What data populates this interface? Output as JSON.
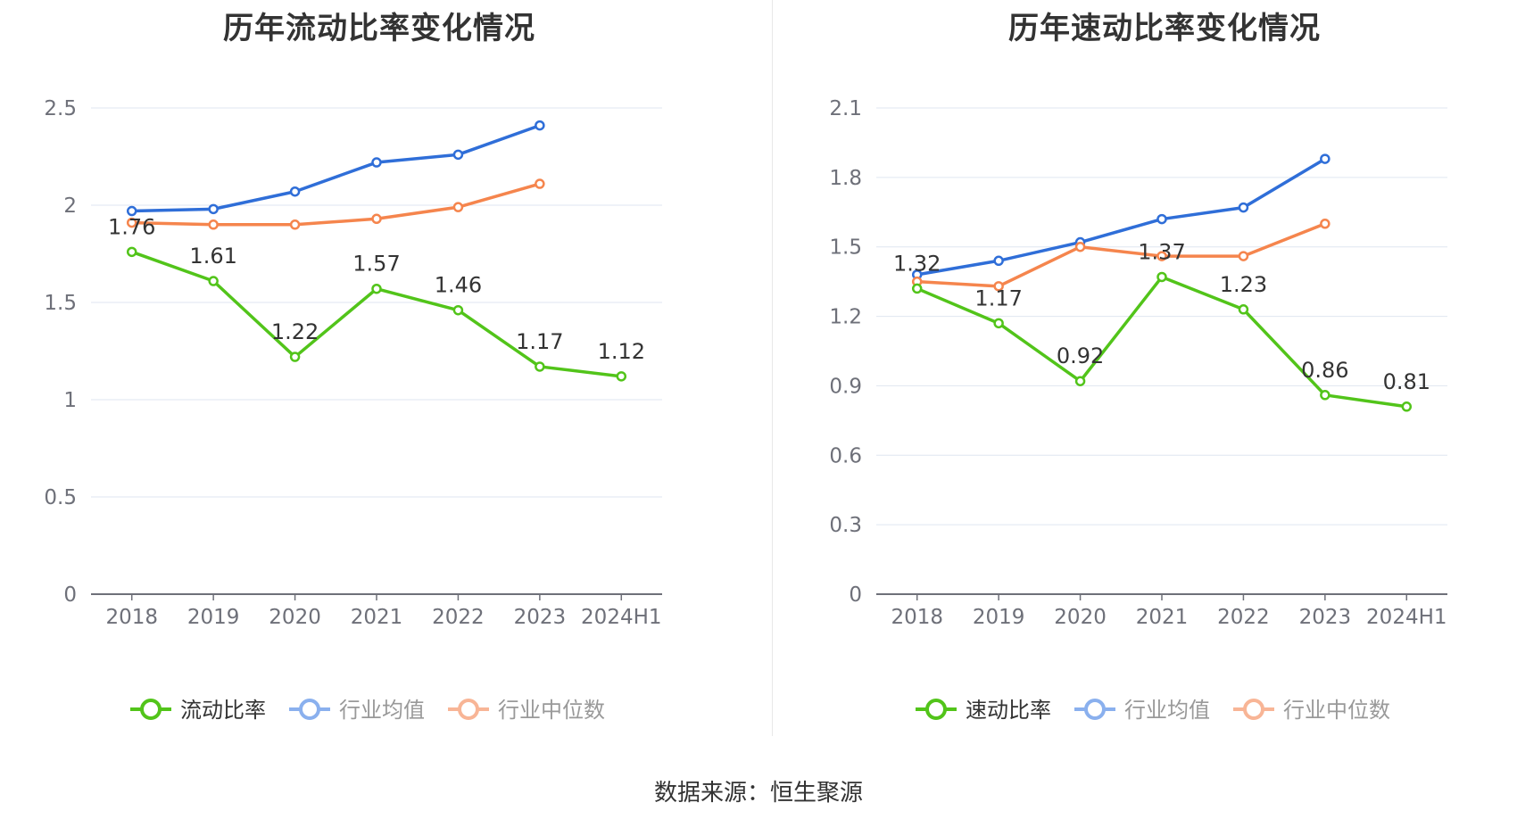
{
  "source_text": "数据来源：恒生聚源",
  "colors": {
    "main": "#52c41a",
    "avg": "#2f6ed8",
    "median": "#f5854d",
    "grid": "#dfe6f0",
    "axis": "#6e7079"
  },
  "chart_data": [
    {
      "type": "line",
      "title": "历年流动比率变化情况",
      "categories": [
        "2018",
        "2019",
        "2020",
        "2021",
        "2022",
        "2023",
        "2024H1"
      ],
      "ylim": [
        0,
        2.5
      ],
      "yticks": [
        0,
        0.5,
        1,
        1.5,
        2,
        2.5
      ],
      "ytick_labels": [
        "0",
        "0.5",
        "1",
        "1.5",
        "2",
        "2.5"
      ],
      "grid": true,
      "legend_position": "bottom",
      "series": [
        {
          "name": "流动比率",
          "values": [
            1.76,
            1.61,
            1.22,
            1.57,
            1.46,
            1.17,
            1.12
          ],
          "labels": [
            "1.76",
            "1.61",
            "1.22",
            "1.57",
            "1.46",
            "1.17",
            "1.12"
          ],
          "color": "#52c41a",
          "legend_color": "#52c41a",
          "legend_text_color": "#333333"
        },
        {
          "name": "行业均值",
          "values": [
            1.97,
            1.98,
            2.07,
            2.22,
            2.26,
            2.41,
            null
          ],
          "color": "#2f6ed8",
          "legend_color": "#8ab0ee",
          "legend_text_color": "#999999"
        },
        {
          "name": "行业中位数",
          "values": [
            1.91,
            1.9,
            1.9,
            1.93,
            1.99,
            2.11,
            null
          ],
          "color": "#f5854d",
          "legend_color": "#f8b596",
          "legend_text_color": "#999999"
        }
      ]
    },
    {
      "type": "line",
      "title": "历年速动比率变化情况",
      "categories": [
        "2018",
        "2019",
        "2020",
        "2021",
        "2022",
        "2023",
        "2024H1"
      ],
      "ylim": [
        0,
        2.1
      ],
      "yticks": [
        0,
        0.3,
        0.6,
        0.9,
        1.2,
        1.5,
        1.8,
        2.1
      ],
      "ytick_labels": [
        "0",
        "0.3",
        "0.6",
        "0.9",
        "1.2",
        "1.5",
        "1.8",
        "2.1"
      ],
      "grid": true,
      "legend_position": "bottom",
      "series": [
        {
          "name": "速动比率",
          "values": [
            1.32,
            1.17,
            0.92,
            1.37,
            1.23,
            0.86,
            0.81
          ],
          "labels": [
            "1.32",
            "1.17",
            "0.92",
            "1.37",
            "1.23",
            "0.86",
            "0.81"
          ],
          "color": "#52c41a",
          "legend_color": "#52c41a",
          "legend_text_color": "#333333"
        },
        {
          "name": "行业均值",
          "values": [
            1.38,
            1.44,
            1.52,
            1.62,
            1.67,
            1.88,
            null
          ],
          "color": "#2f6ed8",
          "legend_color": "#8ab0ee",
          "legend_text_color": "#999999"
        },
        {
          "name": "行业中位数",
          "values": [
            1.35,
            1.33,
            1.5,
            1.46,
            1.46,
            1.6,
            null
          ],
          "color": "#f5854d",
          "legend_color": "#f8b596",
          "legend_text_color": "#999999"
        }
      ]
    }
  ]
}
